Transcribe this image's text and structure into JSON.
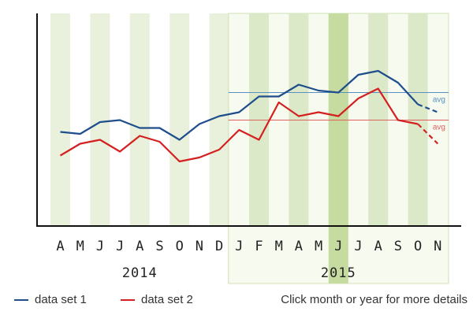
{
  "chart_data": {
    "type": "line",
    "categories": [
      "A",
      "M",
      "J",
      "J",
      "A",
      "S",
      "O",
      "N",
      "D",
      "J",
      "F",
      "M",
      "A",
      "M",
      "J",
      "J",
      "A",
      "S",
      "O",
      "N"
    ],
    "years": [
      {
        "label": "2014",
        "start_index": 0,
        "end_index": 8
      },
      {
        "label": "2015",
        "start_index": 9,
        "end_index": 19
      }
    ],
    "selected_year_index": 1,
    "selected_month_index": 14,
    "ylim": [
      0,
      100
    ],
    "series": [
      {
        "name": "data set 1",
        "color": "#1f4e8c",
        "values": [
          41,
          40,
          46,
          47,
          43,
          43,
          37,
          45,
          49,
          51,
          59,
          59,
          65,
          62,
          61,
          70,
          72,
          66,
          55,
          null
        ],
        "projected": [
          null,
          null,
          null,
          null,
          null,
          null,
          null,
          null,
          null,
          null,
          null,
          null,
          null,
          null,
          null,
          null,
          null,
          null,
          55,
          51
        ],
        "avg": 61,
        "avg_color": "#5b8fc4",
        "avg_label": "avg"
      },
      {
        "name": "data set 2",
        "color": "#d42020",
        "values": [
          29,
          35,
          37,
          31,
          39,
          36,
          26,
          28,
          32,
          42,
          37,
          56,
          49,
          51,
          49,
          58,
          63,
          47,
          45,
          null
        ],
        "projected": [
          null,
          null,
          null,
          null,
          null,
          null,
          null,
          null,
          null,
          null,
          null,
          null,
          null,
          null,
          null,
          null,
          null,
          null,
          45,
          35
        ],
        "avg": 47,
        "avg_color": "#e06060",
        "avg_label": "avg"
      }
    ],
    "grid": false
  },
  "legend": {
    "items": [
      {
        "label": "data set 1",
        "color": "#1f4e8c"
      },
      {
        "label": "data set 2",
        "color": "#d42020"
      }
    ],
    "hint": "Click month or year for more details"
  }
}
